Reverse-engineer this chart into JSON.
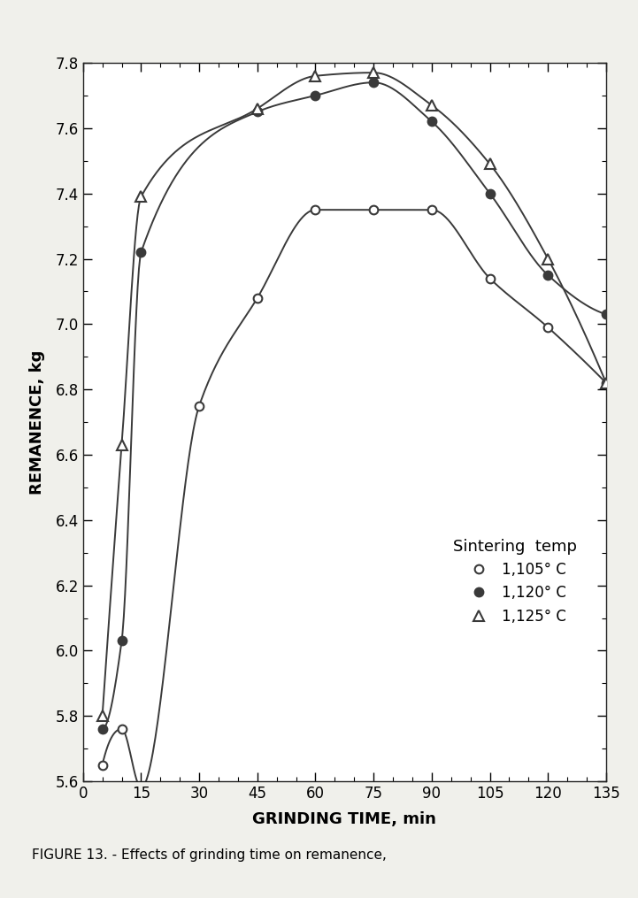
{
  "series": [
    {
      "label": "1,105° C",
      "marker": "open_circle",
      "x": [
        5,
        10,
        15,
        30,
        45,
        60,
        75,
        90,
        105,
        120,
        135
      ],
      "y": [
        5.65,
        5.76,
        5.58,
        6.75,
        7.08,
        7.35,
        7.35,
        7.35,
        7.14,
        6.99,
        6.82
      ]
    },
    {
      "label": "1,120° C",
      "marker": "filled_circle",
      "x": [
        5,
        10,
        15,
        45,
        60,
        75,
        90,
        105,
        120,
        135
      ],
      "y": [
        5.76,
        6.03,
        7.22,
        7.65,
        7.7,
        7.74,
        7.62,
        7.4,
        7.15,
        7.03
      ]
    },
    {
      "label": "1,125° C",
      "marker": "open_triangle",
      "x": [
        5,
        10,
        15,
        45,
        60,
        75,
        90,
        105,
        120,
        135
      ],
      "y": [
        5.8,
        6.63,
        7.39,
        7.66,
        7.76,
        7.77,
        7.67,
        7.49,
        7.2,
        6.82
      ]
    }
  ],
  "xlabel": "GRINDING TIME, min",
  "ylabel": "REMANENCE, kg",
  "xlim": [
    0,
    135
  ],
  "ylim": [
    5.6,
    7.8
  ],
  "xticks": [
    0,
    15,
    30,
    45,
    60,
    75,
    90,
    105,
    120,
    135
  ],
  "yticks": [
    5.6,
    5.8,
    6.0,
    6.2,
    6.4,
    6.6,
    6.8,
    7.0,
    7.2,
    7.4,
    7.6,
    7.8
  ],
  "legend_title": "Sintering  temp",
  "legend_labels": [
    "1,105° C",
    "1,120° C",
    "1,125° C"
  ],
  "caption": "FIGURE 13. - Effects of grinding time on remanence,",
  "line_color": "#3a3a3a",
  "background_color": "#ffffff",
  "fig_bg_color": "#f0f0eb"
}
